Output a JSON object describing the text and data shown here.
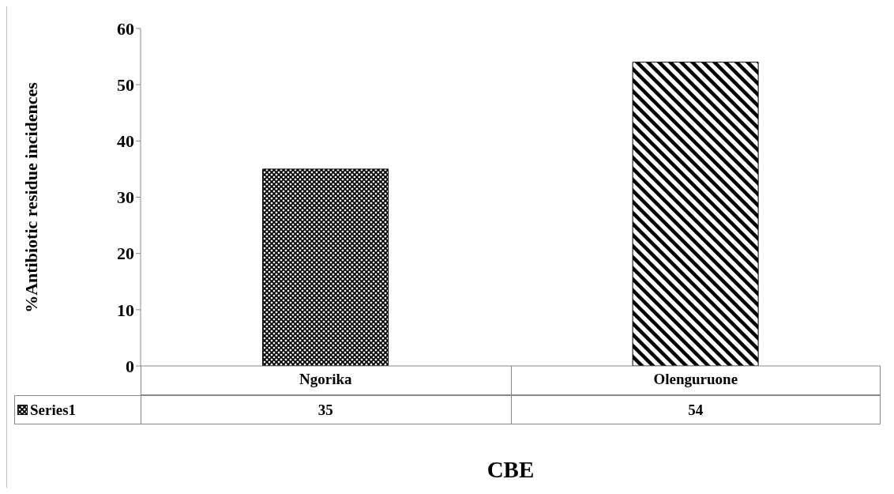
{
  "chart_data": {
    "type": "bar",
    "xlabel": "CBE",
    "ylabel": "%Antibiotic residue incidences",
    "categories": [
      "Ngorika",
      "Olenguruone"
    ],
    "series": [
      {
        "name": "Series1",
        "colors": [
          "#000000",
          "#000000"
        ],
        "values": [
          35,
          54
        ]
      }
    ],
    "ylim": [
      0,
      60
    ],
    "yticks": [
      0,
      10,
      20,
      30,
      40,
      50,
      60
    ],
    "legend": "bottom",
    "data_labels": true
  }
}
